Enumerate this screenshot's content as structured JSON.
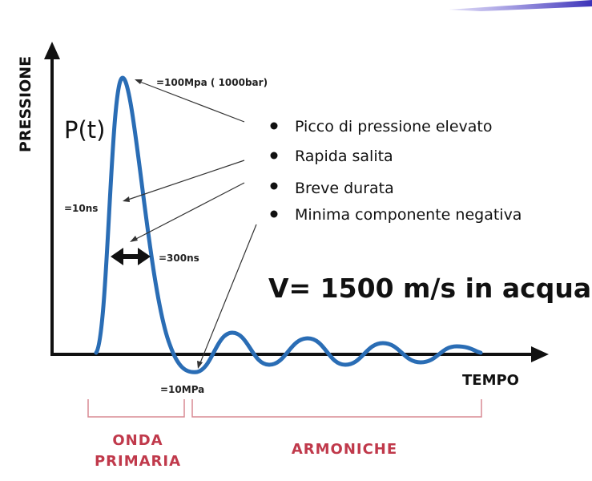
{
  "axes": {
    "y_label": "PRESSIONE",
    "x_label": "TEMPO"
  },
  "function_label": "P(t)",
  "annotations": {
    "peak": "=100Mpa ( 1000bar)",
    "rise": "=10ns",
    "duration": "=300ns",
    "negative": "=10MPa"
  },
  "bullets": [
    "Picco di pressione elevato",
    "Rapida salita",
    "Breve durata",
    "Minima componente negativa"
  ],
  "speed": "V= 1500 m/s in acqua",
  "phases": [
    {
      "lines": [
        "ONDA",
        "PRIMARIA"
      ]
    },
    {
      "lines": [
        "ARMONICHE"
      ]
    }
  ]
}
